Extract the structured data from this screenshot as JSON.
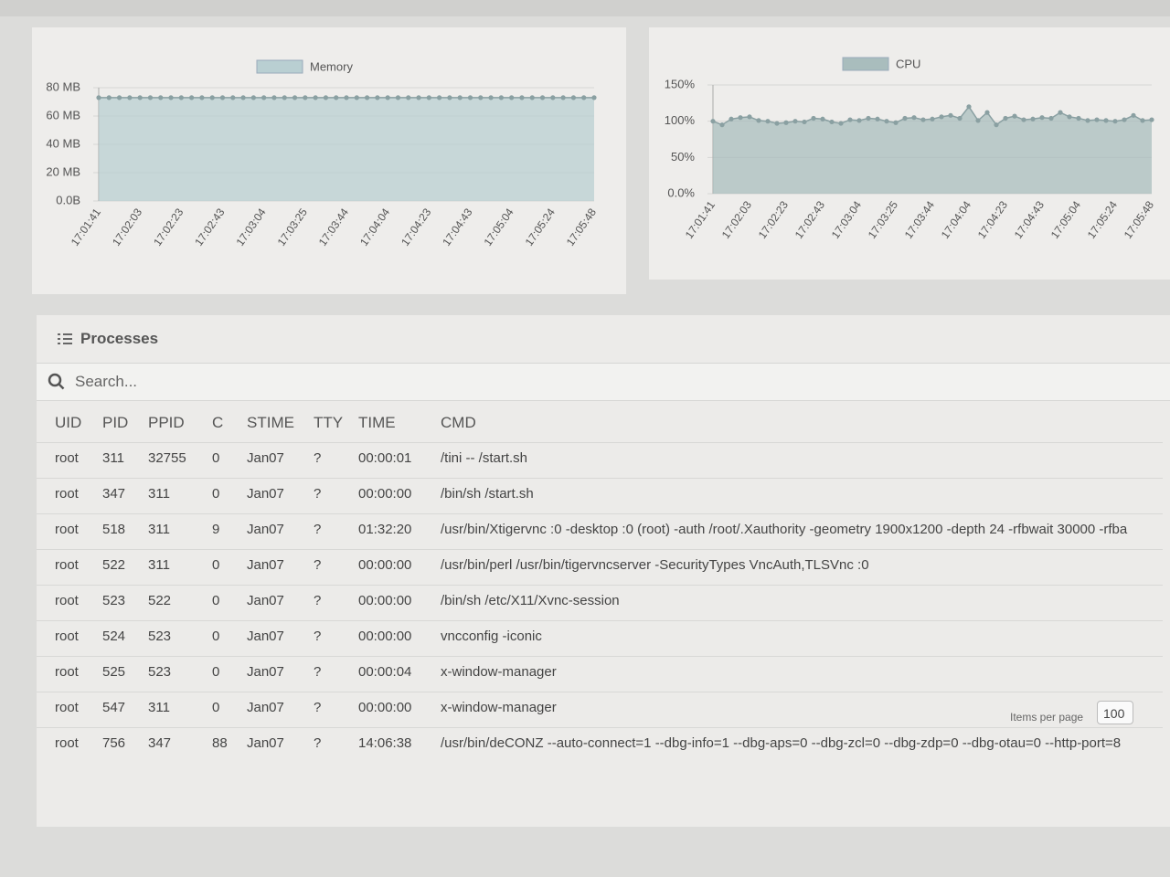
{
  "chart_data": [
    {
      "type": "line",
      "categories": [
        "17:01:41",
        null,
        null,
        null,
        "17:02:03",
        null,
        null,
        null,
        "17:02:23",
        null,
        null,
        null,
        "17:02:43",
        null,
        null,
        null,
        "17:03:04",
        null,
        null,
        null,
        "17:03:25",
        null,
        null,
        null,
        "17:03:44",
        null,
        null,
        null,
        "17:04:04",
        null,
        null,
        null,
        "17:04:23",
        null,
        null,
        null,
        "17:04:43",
        null,
        null,
        null,
        "17:05:04",
        null,
        null,
        null,
        "17:05:24",
        null,
        null,
        null,
        "17:05:48"
      ],
      "series": [
        {
          "name": "Memory",
          "color": "#b9cfd2",
          "values": [
            73,
            73,
            73,
            73,
            73,
            73,
            73,
            73,
            73,
            73,
            73,
            73,
            73,
            73,
            73,
            73,
            73,
            73,
            73,
            73,
            73,
            73,
            73,
            73,
            73,
            73,
            73,
            73,
            73,
            73,
            73,
            73,
            73,
            73,
            73,
            73,
            73,
            73,
            73,
            73,
            73,
            73,
            73,
            73,
            73,
            73,
            73,
            73,
            73
          ]
        }
      ],
      "ylim": [
        0,
        80
      ],
      "yticks": [
        {
          "value": 0,
          "label": "0.0B"
        },
        {
          "value": 20,
          "label": "20 MB"
        },
        {
          "value": 40,
          "label": "40 MB"
        },
        {
          "value": 60,
          "label": "60 MB"
        },
        {
          "value": 80,
          "label": "80 MB"
        }
      ],
      "grid": true
    },
    {
      "type": "line",
      "categories": [
        "17:01:41",
        null,
        null,
        null,
        "17:02:03",
        null,
        null,
        null,
        "17:02:23",
        null,
        null,
        null,
        "17:02:43",
        null,
        null,
        null,
        "17:03:04",
        null,
        null,
        null,
        "17:03:25",
        null,
        null,
        null,
        "17:03:44",
        null,
        null,
        null,
        "17:04:04",
        null,
        null,
        null,
        "17:04:23",
        null,
        null,
        null,
        "17:04:43",
        null,
        null,
        null,
        "17:05:04",
        null,
        null,
        null,
        "17:05:24",
        null,
        null,
        null,
        "17:05:48"
      ],
      "series": [
        {
          "name": "CPU",
          "color": "#a9bdbd",
          "values": [
            100,
            95,
            103,
            105,
            106,
            101,
            100,
            97,
            98,
            100,
            99,
            104,
            103,
            99,
            97,
            102,
            101,
            104,
            103,
            100,
            98,
            104,
            105,
            102,
            103,
            106,
            108,
            104,
            120,
            101,
            112,
            95,
            104,
            107,
            102,
            103,
            105,
            104,
            112,
            106,
            104,
            101,
            102,
            101,
            100,
            102,
            108,
            101,
            102
          ]
        }
      ],
      "ylim": [
        0,
        150
      ],
      "yticks": [
        {
          "value": 0,
          "label": "0.0%"
        },
        {
          "value": 50,
          "label": "50%"
        },
        {
          "value": 100,
          "label": "100%"
        },
        {
          "value": 150,
          "label": "150%"
        }
      ],
      "grid": true
    }
  ],
  "processes": {
    "title": "Processes",
    "search_placeholder": "Search...",
    "columns": [
      "UID",
      "PID",
      "PPID",
      "C",
      "STIME",
      "TTY",
      "TIME",
      "CMD"
    ],
    "rows": [
      [
        "root",
        "311",
        "32755",
        "0",
        "Jan07",
        "?",
        "00:00:01",
        "/tini -- /start.sh"
      ],
      [
        "root",
        "347",
        "311",
        "0",
        "Jan07",
        "?",
        "00:00:00",
        "/bin/sh /start.sh"
      ],
      [
        "root",
        "518",
        "311",
        "9",
        "Jan07",
        "?",
        "01:32:20",
        "/usr/bin/Xtigervnc :0 -desktop :0 (root) -auth /root/.Xauthority -geometry 1900x1200 -depth 24 -rfbwait 30000 -rfba"
      ],
      [
        "root",
        "522",
        "311",
        "0",
        "Jan07",
        "?",
        "00:00:00",
        "/usr/bin/perl /usr/bin/tigervncserver -SecurityTypes VncAuth,TLSVnc :0"
      ],
      [
        "root",
        "523",
        "522",
        "0",
        "Jan07",
        "?",
        "00:00:00",
        "/bin/sh /etc/X11/Xvnc-session"
      ],
      [
        "root",
        "524",
        "523",
        "0",
        "Jan07",
        "?",
        "00:00:00",
        "vncconfig -iconic"
      ],
      [
        "root",
        "525",
        "523",
        "0",
        "Jan07",
        "?",
        "00:00:04",
        "x-window-manager"
      ],
      [
        "root",
        "547",
        "311",
        "0",
        "Jan07",
        "?",
        "00:00:00",
        "x-window-manager"
      ],
      [
        "root",
        "756",
        "347",
        "88",
        "Jan07",
        "?",
        "14:06:38",
        "/usr/bin/deCONZ --auto-connect=1 --dbg-info=1 --dbg-aps=0 --dbg-zcl=0 --dbg-zdp=0 --dbg-otau=0 --http-port=8"
      ]
    ],
    "items_per_page_label": "Items per page",
    "items_per_page": "100"
  }
}
